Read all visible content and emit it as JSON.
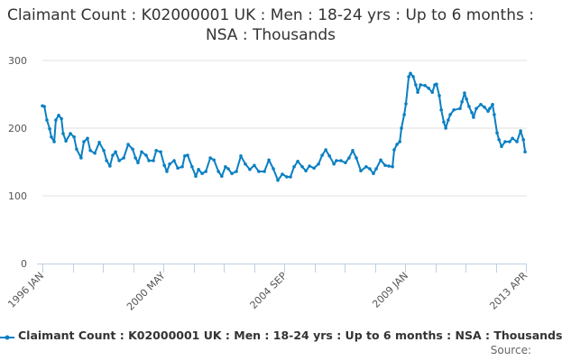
{
  "chart_data": {
    "type": "line",
    "title": "Claimant Count : K02000001 UK : Men : 18-24 yrs : Up to 6 months : NSA : Thousands",
    "xlabel": "",
    "ylabel": "",
    "ylim": [
      0,
      300
    ],
    "xlim": [
      1996.0,
      2013.25
    ],
    "yticks": [
      "0",
      "100",
      "200",
      "300"
    ],
    "ytick_values": [
      0,
      100,
      200,
      300
    ],
    "xtick_labels": [
      "1996 JAN",
      "2000 MAY",
      "2004 SEP",
      "2009 JAN",
      "2013 APR"
    ],
    "xtick_values": [
      1996.0,
      2000.33,
      2004.67,
      2009.0,
      2013.25
    ],
    "grid": true,
    "legend_placement": "bottom",
    "color": "#0a7fc2",
    "series": [
      {
        "name": "Claimant Count : K02000001 UK : Men : 18-24 yrs : Up to 6 months : NSA : Thousands",
        "x": [
          1996.0,
          1996.07,
          1996.16,
          1996.26,
          1996.32,
          1996.42,
          1996.48,
          1996.58,
          1996.68,
          1996.74,
          1996.84,
          1997.0,
          1997.13,
          1997.22,
          1997.38,
          1997.48,
          1997.61,
          1997.71,
          1997.87,
          1998.03,
          1998.19,
          1998.29,
          1998.41,
          1998.51,
          1998.61,
          1998.74,
          1998.9,
          1999.06,
          1999.22,
          1999.32,
          1999.41,
          1999.54,
          1999.7,
          1999.8,
          1999.96,
          2000.06,
          2000.22,
          2000.35,
          2000.44,
          2000.54,
          2000.7,
          2000.83,
          2000.99,
          2001.08,
          2001.18,
          2001.34,
          2001.47,
          2001.57,
          2001.7,
          2001.83,
          2001.99,
          2002.12,
          2002.28,
          2002.4,
          2002.53,
          2002.63,
          2002.76,
          2002.92,
          2003.08,
          2003.24,
          2003.4,
          2003.56,
          2003.72,
          2003.92,
          2004.08,
          2004.24,
          2004.4,
          2004.56,
          2004.72,
          2004.85,
          2004.98,
          2005.11,
          2005.27,
          2005.4,
          2005.53,
          2005.69,
          2005.85,
          2005.98,
          2006.11,
          2006.24,
          2006.4,
          2006.49,
          2006.65,
          2006.81,
          2006.94,
          2007.07,
          2007.2,
          2007.36,
          2007.55,
          2007.68,
          2007.81,
          2007.91,
          2008.07,
          2008.23,
          2008.36,
          2008.49,
          2008.55,
          2008.65,
          2008.75,
          2008.81,
          2008.91,
          2008.97,
          2009.07,
          2009.13,
          2009.23,
          2009.32,
          2009.39,
          2009.49,
          2009.65,
          2009.78,
          2009.91,
          2010.0,
          2010.06,
          2010.16,
          2010.23,
          2010.32,
          2010.39,
          2010.48,
          2010.55,
          2010.68,
          2010.9,
          2010.97,
          2011.06,
          2011.13,
          2011.22,
          2011.32,
          2011.38,
          2011.48,
          2011.64,
          2011.77,
          2011.9,
          2011.96,
          2012.06,
          2012.12,
          2012.22,
          2012.29,
          2012.38,
          2012.51,
          2012.67,
          2012.77,
          2012.93,
          2013.06,
          2013.16,
          2013.22
        ],
        "values": [
          233,
          232,
          212,
          199,
          187,
          180,
          212,
          219,
          214,
          192,
          181,
          192,
          187,
          169,
          156,
          180,
          185,
          167,
          163,
          179,
          167,
          152,
          144,
          160,
          165,
          152,
          156,
          176,
          169,
          156,
          149,
          165,
          160,
          152,
          152,
          167,
          165,
          145,
          136,
          147,
          152,
          141,
          143,
          159,
          160,
          143,
          129,
          139,
          133,
          136,
          156,
          153,
          136,
          129,
          143,
          140,
          133,
          136,
          159,
          147,
          139,
          145,
          136,
          136,
          153,
          140,
          123,
          132,
          128,
          128,
          143,
          151,
          143,
          137,
          144,
          141,
          147,
          160,
          168,
          159,
          147,
          152,
          152,
          149,
          156,
          167,
          156,
          137,
          143,
          140,
          133,
          140,
          153,
          145,
          144,
          143,
          168,
          176,
          180,
          200,
          220,
          236,
          276,
          281,
          276,
          264,
          253,
          264,
          263,
          259,
          253,
          264,
          265,
          248,
          227,
          209,
          200,
          212,
          220,
          227,
          229,
          239,
          252,
          243,
          232,
          223,
          216,
          229,
          235,
          231,
          225,
          229,
          235,
          220,
          193,
          183,
          173,
          180,
          180,
          185,
          180,
          196,
          183,
          165
        ]
      }
    ]
  },
  "legend": {
    "label": "Claimant Count : K02000001 UK : Men : 18-24 yrs : Up to 6 months : NSA : Thousands"
  },
  "source_label": "Source:"
}
